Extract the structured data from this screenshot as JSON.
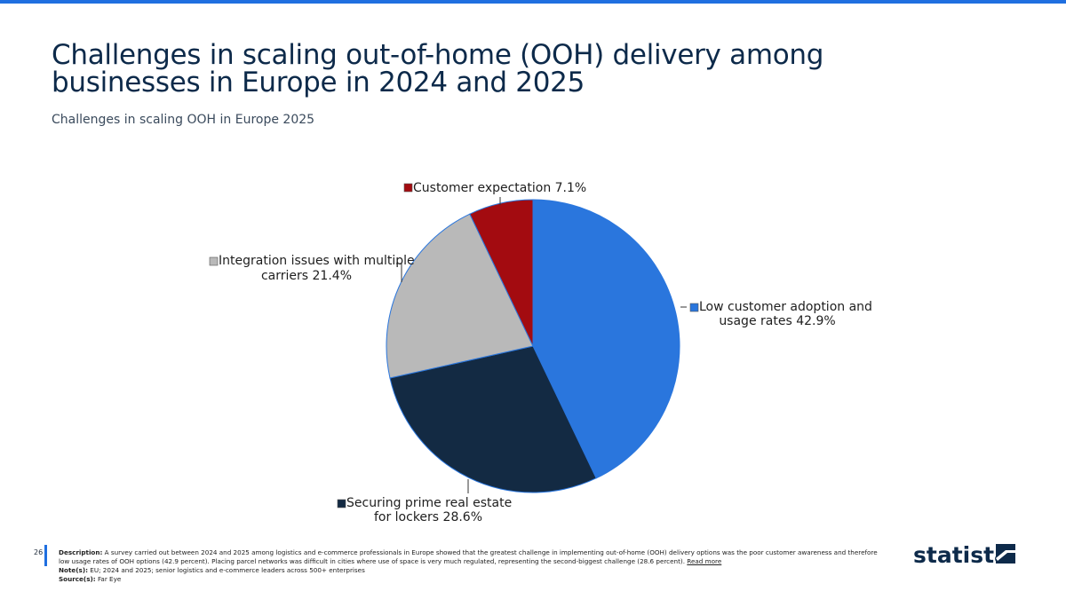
{
  "title": "Challenges in scaling out-of-home (OOH) delivery among businesses in Europe in 2024 and 2025",
  "subtitle": "Challenges in scaling OOH in Europe 2025",
  "chart_data": {
    "type": "pie",
    "title": "Challenges in scaling out-of-home (OOH) delivery among businesses in Europe in 2024 and 2025",
    "subtitle": "Challenges in scaling OOH in Europe 2025",
    "unit": "%",
    "slices": [
      {
        "label": "Low customer adoption and usage rates",
        "value": 42.9,
        "display": "42.9%",
        "color": "#2a76dd"
      },
      {
        "label": "Securing prime real estate for lockers",
        "value": 28.6,
        "display": "28.6%",
        "color": "#132a43"
      },
      {
        "label": "Integration issues with multiple carriers",
        "value": 21.4,
        "display": "21.4%",
        "color": "#b9b9b9"
      },
      {
        "label": "Customer expectation",
        "value": 7.1,
        "display": "7.1%",
        "color": "#a30b10"
      }
    ],
    "legend": "none"
  },
  "footer": {
    "page_number": "26",
    "description_label": "Description:",
    "description": "A survey carried out between 2024 and 2025 among logistics and e-commerce professionals in Europe showed that the greatest challenge in implementing out-of-home (OOH) delivery options was the poor customer awareness and therefore low usage rates of OOH options (42.9 percent). Placing parcel networks was difficult in cities where use of space is very much regulated, representing the second-biggest challenge (28.6 percent).",
    "read_more": "Read more",
    "note_label": "Note(s):",
    "note": "EU; 2024 and 2025; senior logistics and e-commerce leaders across 500+ enterprises",
    "source_label": "Source(s):",
    "source": "Far Eye"
  },
  "brand": {
    "name": "statista",
    "color": "#0d2a4a",
    "accent": "#1f6fe0"
  }
}
